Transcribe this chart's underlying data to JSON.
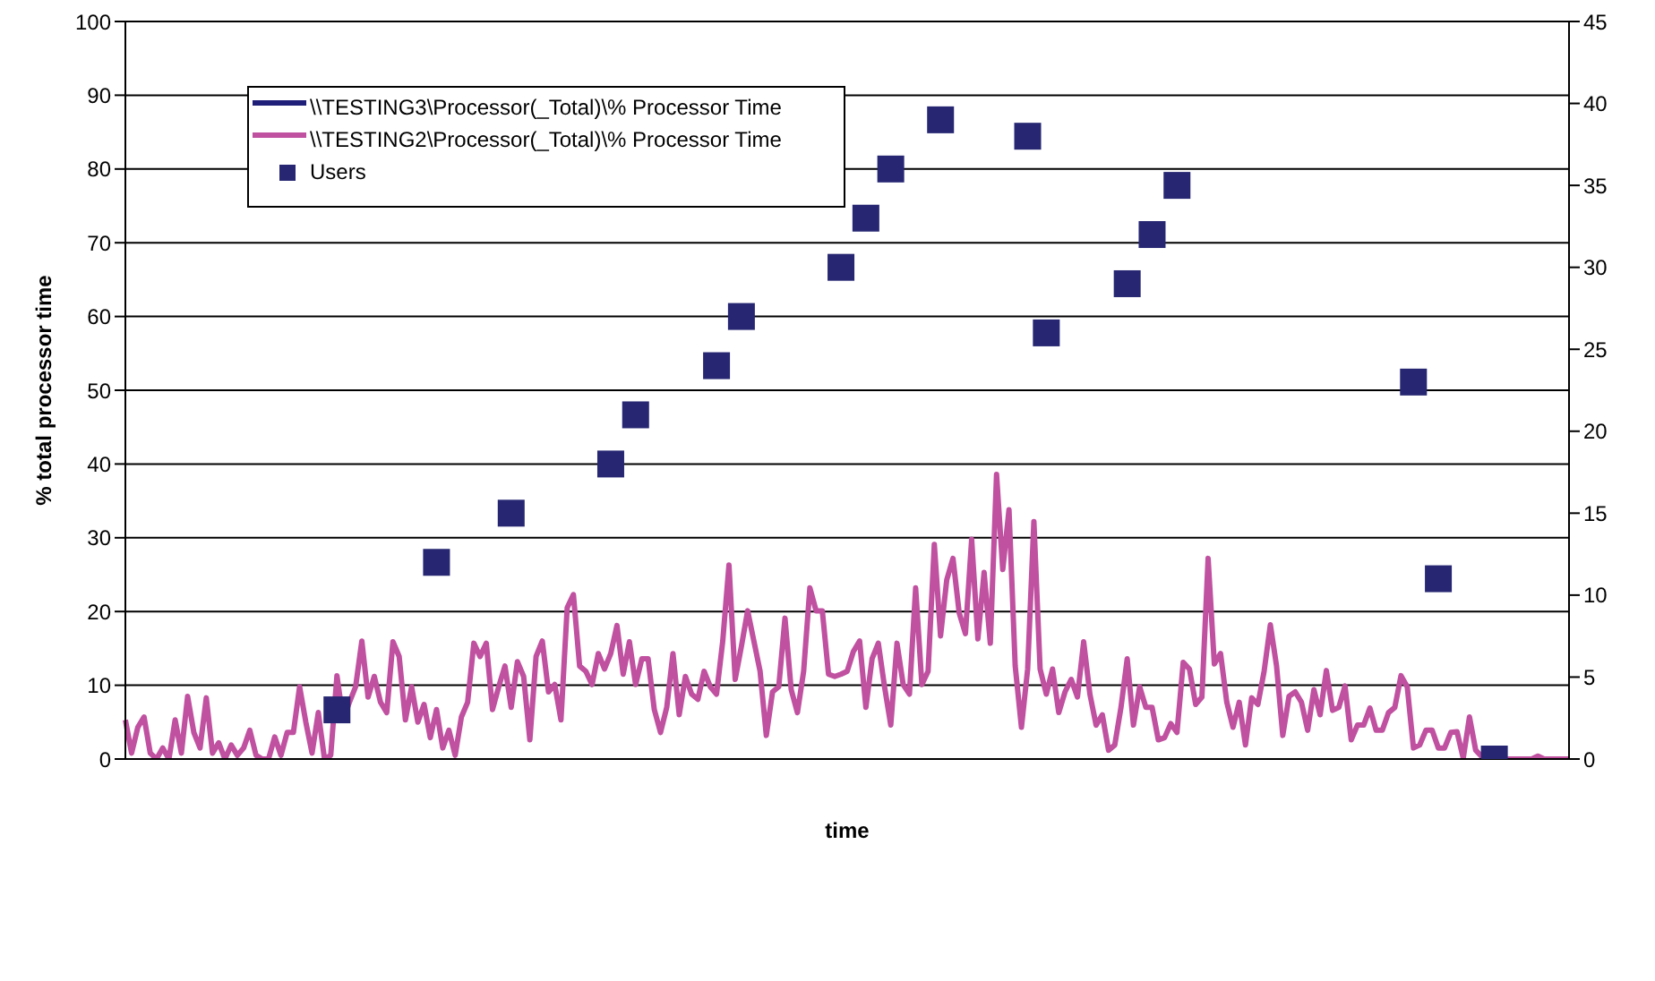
{
  "chart_data": {
    "type": "line",
    "xlabel": "time",
    "ylabel": "% total processor time",
    "categories": [
      null,
      null,
      null,
      null,
      null,
      null,
      null,
      null,
      null,
      null,
      null,
      null,
      null,
      null,
      null,
      null,
      null,
      null,
      null,
      null,
      null,
      null,
      null,
      null,
      null,
      null,
      null,
      null,
      null,
      null,
      null,
      null,
      null,
      null,
      null,
      null,
      null,
      null,
      null,
      null,
      null,
      null,
      null,
      null,
      null,
      null,
      null,
      null,
      null,
      null,
      null,
      null,
      null,
      null,
      null,
      null,
      null,
      null,
      null,
      null,
      null,
      null,
      null,
      null,
      null,
      null,
      null,
      null,
      null,
      null,
      null,
      null,
      null,
      null,
      null,
      null,
      null,
      null,
      null,
      null,
      null,
      null,
      null,
      null,
      null,
      null,
      null,
      null,
      null,
      null,
      null,
      null,
      null,
      null,
      null,
      null,
      null,
      null,
      null,
      null,
      null,
      null,
      null,
      null,
      null,
      null,
      null,
      null,
      null,
      null,
      null,
      null,
      null,
      null,
      null,
      null,
      null,
      null,
      null,
      null,
      null,
      null,
      null,
      null,
      null,
      null,
      null,
      null,
      null,
      null,
      null,
      null,
      null,
      null,
      null,
      null,
      null,
      null,
      null,
      null,
      null,
      null,
      null,
      null,
      null,
      null,
      null,
      null,
      null,
      null,
      null,
      null,
      null,
      null,
      null,
      null,
      null,
      null,
      null,
      null,
      null,
      null,
      null,
      null,
      null,
      null,
      null,
      null,
      null,
      null,
      null,
      null,
      null,
      null,
      null,
      null,
      null,
      null,
      null,
      null,
      null,
      null,
      null,
      null,
      null,
      null,
      null,
      null,
      null,
      null,
      null,
      null,
      null,
      null,
      null,
      null,
      null,
      null,
      null,
      null,
      null,
      null,
      null,
      null,
      null,
      null,
      null,
      null,
      null,
      null,
      null,
      null,
      null,
      null,
      null,
      null,
      null,
      null,
      null,
      null,
      null,
      null,
      null,
      null,
      null,
      null,
      null,
      null,
      null,
      null,
      null,
      null,
      null
    ],
    "series": [
      {
        "name": "\\\\TESTING3\\Processor(_Total)\\% Processor Time",
        "color": "#1f1f7a",
        "marker": "none",
        "values": [
          null,
          null,
          null,
          null,
          null,
          null,
          null,
          null,
          null,
          null,
          null,
          null,
          null,
          null,
          null,
          null,
          null,
          null,
          null,
          null,
          null,
          null,
          null,
          null,
          null,
          null,
          null,
          null,
          null,
          null,
          null,
          null,
          null,
          null,
          null,
          null,
          null,
          null,
          null,
          null,
          null,
          null,
          null,
          null,
          null,
          null,
          null,
          null,
          null,
          null,
          null,
          null,
          null,
          null,
          null,
          null,
          null,
          null,
          null,
          null,
          null,
          null,
          null,
          null,
          null,
          null,
          null,
          null,
          null,
          null,
          null,
          null,
          null,
          null,
          null,
          null,
          null,
          null,
          null,
          null,
          null,
          null,
          null,
          null,
          null,
          null,
          null,
          null,
          null,
          null,
          null,
          null,
          null,
          null,
          null,
          null,
          null,
          null,
          null,
          null,
          null,
          null,
          null,
          null,
          null,
          null,
          null,
          null,
          null,
          null,
          null,
          null,
          null,
          null,
          null,
          null,
          null,
          null,
          null,
          null,
          null,
          null,
          null,
          null,
          null,
          null,
          null,
          null,
          null,
          null,
          null,
          null,
          null,
          null,
          null,
          null,
          null,
          null,
          null,
          null,
          null,
          null,
          null,
          null,
          null,
          null,
          null,
          null,
          null,
          null,
          null,
          null,
          null,
          null,
          null,
          null,
          null,
          null,
          null,
          null,
          null,
          null,
          null,
          null,
          null,
          null,
          null,
          null,
          null,
          null,
          null,
          null,
          null,
          null,
          null,
          null,
          null,
          null,
          null,
          null,
          null,
          null,
          null,
          null,
          null,
          null,
          null,
          null,
          null,
          null,
          null,
          null,
          null,
          null,
          null,
          null,
          null,
          null,
          null,
          null,
          null,
          null,
          null,
          null,
          null,
          null,
          null,
          null,
          null,
          null,
          null,
          null,
          null,
          null,
          null,
          null,
          null,
          null,
          null,
          null,
          null,
          null,
          null,
          null,
          null,
          null,
          null,
          null,
          null,
          null,
          null,
          null,
          null
        ]
      },
      {
        "name": "\\\\TESTING2\\Processor(_Total)\\% Processor Time",
        "color": "#c050a0",
        "marker": "none",
        "values": [
          5.3,
          0.8,
          4.3,
          5.7,
          0.8,
          0,
          1.5,
          0,
          5.3,
          0.8,
          8.5,
          3.6,
          1.5,
          8.3,
          0.8,
          2.2,
          0,
          1.9,
          0.5,
          1.5,
          3.9,
          0.5,
          0,
          0,
          3,
          0.5,
          3.6,
          3.6,
          9.8,
          5,
          0.8,
          6.3,
          0,
          0.5,
          11.3,
          5.3,
          7.7,
          9.8,
          16,
          8.4,
          11.2,
          7.7,
          6.3,
          15.9,
          13.9,
          5.3,
          9.8,
          5,
          7.4,
          2.9,
          6.7,
          1.5,
          3.9,
          0.5,
          5.7,
          7.7,
          15.7,
          13.9,
          15.7,
          6.7,
          9.8,
          12.6,
          7,
          13.2,
          11.2,
          2.6,
          13.9,
          16,
          9.1,
          10.1,
          5.3,
          20.5,
          22.3,
          12.6,
          11.9,
          10.1,
          14.3,
          12.2,
          14.3,
          18.1,
          11.5,
          15.9,
          10.1,
          13.6,
          13.6,
          6.7,
          3.6,
          7,
          14.3,
          6,
          11.2,
          8.8,
          8.1,
          11.9,
          9.8,
          8.8,
          16,
          26.3,
          10.8,
          15.3,
          20.1,
          16,
          11.9,
          3.2,
          9.1,
          9.8,
          19.1,
          9.4,
          6.3,
          11.9,
          23.2,
          20.1,
          20.1,
          11.5,
          11.2,
          11.5,
          11.9,
          14.6,
          16,
          7,
          13.6,
          15.7,
          9.8,
          4.6,
          15.7,
          10.1,
          8.8,
          23.2,
          10.1,
          11.9,
          29.1,
          16.7,
          24.3,
          27.2,
          19.8,
          17,
          29.8,
          16.3,
          25.3,
          15.7,
          38.6,
          25.7,
          33.8,
          12.6,
          4.3,
          12.2,
          32.2,
          12.2,
          8.8,
          12.2,
          6.3,
          9.1,
          10.8,
          8.4,
          15.9,
          8.8,
          4.6,
          6,
          1.2,
          1.9,
          7,
          13.6,
          4.6,
          9.8,
          7,
          7,
          2.6,
          2.9,
          4.8,
          3.6,
          13.1,
          12.2,
          7.4,
          8.4,
          27.2,
          12.9,
          14.3,
          7.7,
          4.3,
          7.7,
          1.9,
          8.3,
          7.4,
          11.9,
          18.2,
          12.6,
          3.2,
          8.5,
          9.1,
          7.7,
          3.9,
          9.4,
          6,
          12,
          6.6,
          7,
          9.9,
          2.6,
          4.6,
          4.6,
          6.9,
          3.9,
          3.9,
          6.3,
          7,
          11.3,
          9.8,
          1.5,
          1.9,
          3.9,
          3.9,
          1.5,
          1.5,
          3.6,
          3.7,
          0.1,
          5.7,
          1.2,
          0.3,
          0,
          0,
          0,
          0,
          0,
          0,
          0,
          0,
          0.4,
          0,
          0,
          0,
          0,
          0
        ]
      },
      {
        "name": "Users",
        "type": "scatter",
        "axis": "y2",
        "color": "#262673",
        "marker": "square",
        "values": [
          null,
          null,
          null,
          null,
          null,
          null,
          null,
          null,
          null,
          null,
          null,
          null,
          null,
          null,
          null,
          null,
          null,
          null,
          null,
          null,
          null,
          null,
          null,
          null,
          null,
          null,
          null,
          null,
          null,
          null,
          null,
          null,
          null,
          null,
          3,
          null,
          null,
          null,
          null,
          null,
          null,
          null,
          null,
          null,
          null,
          null,
          null,
          null,
          null,
          null,
          12,
          null,
          null,
          null,
          null,
          null,
          null,
          null,
          null,
          null,
          null,
          null,
          15,
          null,
          null,
          null,
          null,
          null,
          null,
          null,
          null,
          null,
          null,
          null,
          null,
          null,
          null,
          null,
          18,
          null,
          null,
          null,
          21,
          null,
          null,
          null,
          null,
          null,
          null,
          null,
          null,
          null,
          null,
          null,
          null,
          24,
          null,
          null,
          null,
          27,
          null,
          null,
          null,
          null,
          null,
          null,
          null,
          null,
          null,
          null,
          null,
          null,
          null,
          null,
          null,
          30,
          null,
          null,
          null,
          33,
          null,
          null,
          null,
          36,
          null,
          null,
          null,
          null,
          null,
          null,
          null,
          39,
          null,
          null,
          null,
          null,
          null,
          null,
          null,
          null,
          null,
          null,
          null,
          null,
          null,
          38,
          null,
          null,
          26,
          null,
          null,
          null,
          null,
          null,
          null,
          null,
          null,
          null,
          null,
          null,
          null,
          29,
          null,
          null,
          null,
          32,
          null,
          null,
          null,
          35,
          null,
          null,
          null,
          null,
          null,
          null,
          null,
          null,
          null,
          null,
          null,
          null,
          null,
          null,
          null,
          null,
          null,
          null,
          null,
          null,
          null,
          null,
          null,
          null,
          null,
          null,
          null,
          null,
          null,
          null,
          null,
          null,
          null,
          null,
          null,
          null,
          null,
          23,
          null,
          null,
          null,
          11,
          null,
          null,
          null,
          null,
          null,
          null,
          null,
          null,
          0,
          null,
          null,
          null,
          null,
          null,
          null,
          null,
          null,
          null,
          null,
          null,
          null
        ]
      }
    ],
    "ylim": [
      0,
      100
    ],
    "yticks": [
      0,
      10,
      20,
      30,
      40,
      50,
      60,
      70,
      80,
      90,
      100
    ],
    "y2lim": [
      0,
      45
    ],
    "y2ticks": [
      0,
      5,
      10,
      15,
      20,
      25,
      30,
      35,
      40,
      45
    ],
    "grid": "y",
    "legend": "top left",
    "tick_labels": "y"
  }
}
